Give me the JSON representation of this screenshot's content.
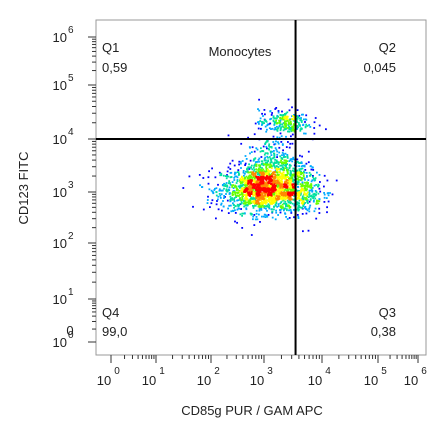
{
  "chart_data": {
    "type": "scatter",
    "title": "Monocytes",
    "xlabel": "CD85g PUR / GAM APC",
    "ylabel": "CD123 FITC",
    "x_scale": "log",
    "y_scale": "log",
    "xlim": [
      1,
      1000000
    ],
    "ylim": [
      1,
      1000000
    ],
    "x_ticks": [
      {
        "base": "10",
        "exp": "0",
        "value": 1
      },
      {
        "base": "10",
        "exp": "1",
        "value": 10
      },
      {
        "base": "10",
        "exp": "2",
        "value": 100
      },
      {
        "base": "10",
        "exp": "3",
        "value": 1000
      },
      {
        "base": "10",
        "exp": "4",
        "value": 10000
      },
      {
        "base": "10",
        "exp": "5",
        "value": 100000
      },
      {
        "base": "10",
        "exp": "6",
        "value": 1000000
      }
    ],
    "y_ticks": [
      {
        "base": "10",
        "exp": "0",
        "value": 1
      },
      {
        "base": "10",
        "exp": "1",
        "value": 10
      },
      {
        "base": "10",
        "exp": "2",
        "value": 100
      },
      {
        "base": "10",
        "exp": "3",
        "value": 1000
      },
      {
        "base": "10",
        "exp": "4",
        "value": 10000
      },
      {
        "base": "10",
        "exp": "5",
        "value": 100000
      },
      {
        "base": "10",
        "exp": "6",
        "value": 1000000
      }
    ],
    "y_extra_tick": {
      "label": "0"
    },
    "quadrant_gate": {
      "x": 3500,
      "y": 10000
    },
    "quadrants": [
      {
        "name": "Q1",
        "value": "0,59",
        "corner": "top-left"
      },
      {
        "name": "Q2",
        "value": "0,045",
        "corner": "top-right"
      },
      {
        "name": "Q3",
        "value": "0,38",
        "corner": "bottom-right"
      },
      {
        "name": "Q4",
        "value": "99,0",
        "corner": "bottom-left"
      }
    ],
    "populations": [
      {
        "center_x": 1000,
        "center_y": 1100,
        "spread_log_x": 0.4,
        "spread_log_y": 0.22,
        "events": 1700
      },
      {
        "center_x": 1500,
        "center_y": 3000,
        "spread_log_x": 0.25,
        "spread_log_y": 0.28,
        "events": 400
      },
      {
        "center_x": 2200,
        "center_y": 20000,
        "spread_log_x": 0.22,
        "spread_log_y": 0.12,
        "events": 260
      },
      {
        "center_x": 4500,
        "center_y": 1000,
        "spread_log_x": 0.18,
        "spread_log_y": 0.25,
        "events": 220
      }
    ],
    "density_colors": [
      "#0000ff",
      "#00aaff",
      "#00e0a0",
      "#66ff00",
      "#ffff00",
      "#ff8800",
      "#ff0000"
    ],
    "grid": false,
    "legend": "none"
  }
}
